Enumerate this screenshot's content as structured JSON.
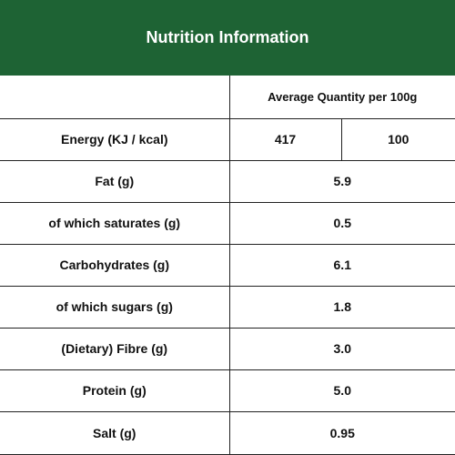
{
  "header": {
    "title": "Nutrition Information"
  },
  "columns": {
    "average_quantity": "Average Quantity per 100g"
  },
  "energy": {
    "label": "Energy (KJ / kcal)",
    "kj": "417",
    "kcal": "100"
  },
  "rows": [
    {
      "label": "Fat (g)",
      "value": "5.9"
    },
    {
      "label": "of which saturates (g)",
      "value": "0.5"
    },
    {
      "label": "Carbohydrates (g)",
      "value": "6.1"
    },
    {
      "label": "of which sugars (g)",
      "value": "1.8"
    },
    {
      "label": "(Dietary) Fibre (g)",
      "value": "3.0"
    },
    {
      "label": "Protein (g)",
      "value": "5.0"
    },
    {
      "label": "Salt (g)",
      "value": "0.95"
    }
  ],
  "colors": {
    "header_bg": "#1e6334",
    "header_text": "#ffffff",
    "border": "#222222"
  }
}
